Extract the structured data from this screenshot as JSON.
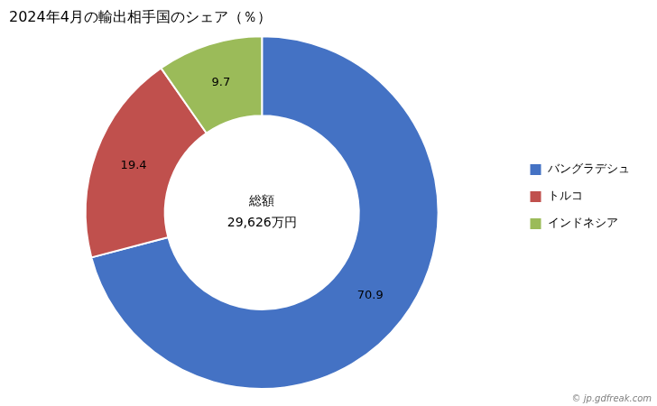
{
  "chart_data": {
    "type": "doughnut",
    "title": "2024年4月の輸出相手国のシェア（％）",
    "categories": [
      "バングラデシュ",
      "トルコ",
      "インドネシア"
    ],
    "values": [
      70.9,
      19.4,
      9.7
    ],
    "colors": [
      "#4472C4",
      "#C0504D",
      "#9BBB59"
    ],
    "data_labels": true,
    "legend": "right",
    "annotations": [
      "総額",
      "29,626万円",
      "© jp.gdfreak.com"
    ]
  }
}
